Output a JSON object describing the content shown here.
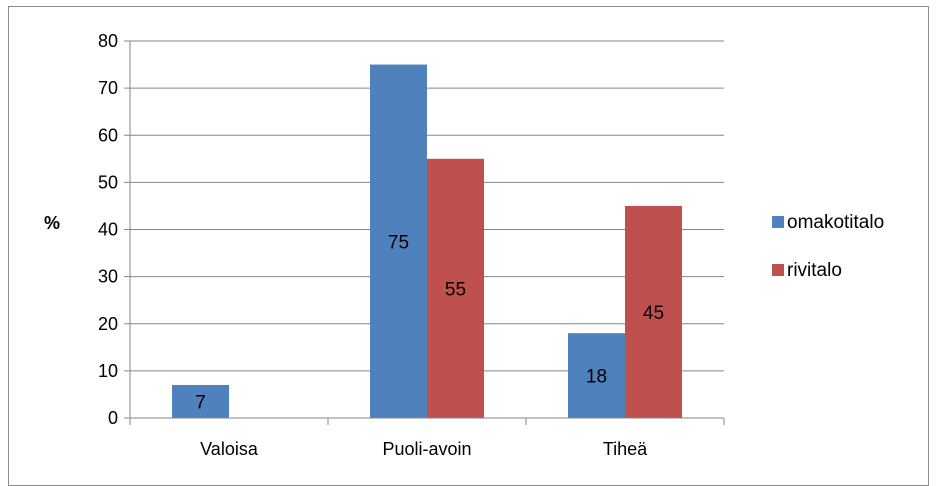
{
  "chart_data": {
    "type": "bar",
    "title": "",
    "xlabel": "",
    "ylabel": "%",
    "categories": [
      "Valoisa",
      "Puoli-avoin",
      "Tiheä"
    ],
    "series": [
      {
        "name": "omakotitalo",
        "color": "#4f81bd",
        "values": [
          7,
          75,
          18
        ],
        "labels": [
          "7",
          "75",
          "18"
        ]
      },
      {
        "name": "rivitalo",
        "color": "#c0504d",
        "values": [
          null,
          55,
          45
        ],
        "labels": [
          null,
          "55",
          "45"
        ]
      }
    ],
    "ylim": [
      0,
      80
    ],
    "yticks": [
      0,
      10,
      20,
      30,
      40,
      50,
      60,
      70,
      80
    ],
    "grid": true,
    "legend_position": "right"
  }
}
